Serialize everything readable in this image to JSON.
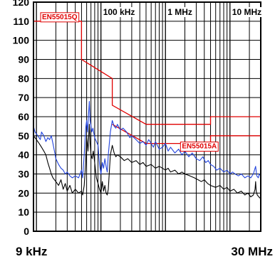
{
  "chart_data": {
    "type": "line",
    "x_scale": "log",
    "x_range_hz": [
      9000,
      30000000
    ],
    "x_label_start": "9 kHz",
    "x_label_end": "30 MHz",
    "decade_labels": [
      {
        "freq_hz": 100000,
        "label": "100 kHz"
      },
      {
        "freq_hz": 1000000,
        "label": "1 MHz"
      },
      {
        "freq_hz": 10000000,
        "label": "10 MHz"
      }
    ],
    "ylim": [
      0,
      120
    ],
    "y_ticks": [
      0,
      10,
      20,
      30,
      40,
      50,
      60,
      70,
      80,
      90,
      100,
      110,
      120
    ],
    "grid": true,
    "limits": [
      {
        "name": "EN55015Q",
        "color": "#e00000",
        "points": [
          [
            9000,
            110
          ],
          [
            50000,
            110
          ],
          [
            50000,
            90
          ],
          [
            150000,
            80
          ],
          [
            150000,
            66
          ],
          [
            500000,
            56
          ],
          [
            5000000,
            56
          ],
          [
            5000000,
            60
          ],
          [
            30000000,
            60
          ]
        ]
      },
      {
        "name": "EN55015A",
        "color": "#e00000",
        "points": [
          [
            150000,
            56
          ],
          [
            500000,
            46
          ],
          [
            5000000,
            46
          ],
          [
            5000000,
            50
          ],
          [
            30000000,
            50
          ]
        ]
      }
    ],
    "series": [
      {
        "color": "#2244dd",
        "points": [
          [
            9000,
            55
          ],
          [
            9500,
            52
          ],
          [
            10500,
            50
          ],
          [
            11500,
            48
          ],
          [
            12000,
            52
          ],
          [
            13000,
            50
          ],
          [
            14000,
            47
          ],
          [
            15000,
            49
          ],
          [
            16000,
            48
          ],
          [
            17000,
            50
          ],
          [
            18000,
            46
          ],
          [
            19000,
            42
          ],
          [
            20000,
            38
          ],
          [
            22000,
            35
          ],
          [
            24000,
            33
          ],
          [
            26000,
            32
          ],
          [
            28000,
            30
          ],
          [
            30000,
            31
          ],
          [
            33000,
            29
          ],
          [
            36000,
            28
          ],
          [
            40000,
            29
          ],
          [
            45000,
            28
          ],
          [
            50000,
            32
          ],
          [
            52000,
            28
          ],
          [
            55000,
            40
          ],
          [
            58000,
            54
          ],
          [
            60000,
            58
          ],
          [
            62000,
            52
          ],
          [
            64000,
            60
          ],
          [
            66000,
            68
          ],
          [
            68000,
            58
          ],
          [
            70000,
            55
          ],
          [
            72000,
            52
          ],
          [
            75000,
            54
          ],
          [
            78000,
            51
          ],
          [
            80000,
            49
          ],
          [
            85000,
            47
          ],
          [
            90000,
            45
          ],
          [
            95000,
            35
          ],
          [
            100000,
            30
          ],
          [
            105000,
            36
          ],
          [
            110000,
            33
          ],
          [
            115000,
            38
          ],
          [
            120000,
            34
          ],
          [
            125000,
            31
          ],
          [
            130000,
            40
          ],
          [
            140000,
            52
          ],
          [
            150000,
            58
          ],
          [
            160000,
            55
          ],
          [
            170000,
            54
          ],
          [
            180000,
            56
          ],
          [
            200000,
            53
          ],
          [
            220000,
            54
          ],
          [
            250000,
            52
          ],
          [
            280000,
            49
          ],
          [
            300000,
            50
          ],
          [
            350000,
            48
          ],
          [
            400000,
            46
          ],
          [
            450000,
            47
          ],
          [
            500000,
            45
          ],
          [
            550000,
            48
          ],
          [
            600000,
            46
          ],
          [
            650000,
            44
          ],
          [
            700000,
            47
          ],
          [
            800000,
            43
          ],
          [
            900000,
            44
          ],
          [
            1000000,
            46
          ],
          [
            1100000,
            42
          ],
          [
            1200000,
            44
          ],
          [
            1400000,
            41
          ],
          [
            1600000,
            43
          ],
          [
            1800000,
            40
          ],
          [
            2000000,
            42
          ],
          [
            2300000,
            39
          ],
          [
            2600000,
            41
          ],
          [
            3000000,
            38
          ],
          [
            3400000,
            37
          ],
          [
            3800000,
            39
          ],
          [
            4200000,
            36
          ],
          [
            4600000,
            37
          ],
          [
            5000000,
            35
          ],
          [
            5600000,
            34
          ],
          [
            6200000,
            32
          ],
          [
            7000000,
            33
          ],
          [
            8000000,
            31
          ],
          [
            9000000,
            32
          ],
          [
            10000000,
            30
          ],
          [
            11000000,
            31
          ],
          [
            12000000,
            30
          ],
          [
            13500000,
            29
          ],
          [
            15000000,
            30
          ],
          [
            17000000,
            28
          ],
          [
            19000000,
            29
          ],
          [
            21000000,
            28
          ],
          [
            23000000,
            30
          ],
          [
            25000000,
            34
          ],
          [
            26000000,
            29
          ],
          [
            27500000,
            28
          ],
          [
            28500000,
            30
          ],
          [
            30000000,
            29
          ]
        ]
      },
      {
        "color": "#000000",
        "points": [
          [
            9000,
            50
          ],
          [
            10000,
            48
          ],
          [
            11000,
            46
          ],
          [
            12000,
            44
          ],
          [
            13000,
            42
          ],
          [
            14000,
            40
          ],
          [
            15000,
            36
          ],
          [
            16000,
            33
          ],
          [
            17000,
            30
          ],
          [
            18000,
            28
          ],
          [
            20000,
            26
          ],
          [
            22000,
            24
          ],
          [
            24000,
            27
          ],
          [
            26000,
            22
          ],
          [
            28000,
            25
          ],
          [
            30000,
            21
          ],
          [
            33000,
            24
          ],
          [
            36000,
            20
          ],
          [
            40000,
            22
          ],
          [
            45000,
            20
          ],
          [
            50000,
            21
          ],
          [
            52000,
            19
          ],
          [
            55000,
            24
          ],
          [
            58000,
            36
          ],
          [
            60000,
            50
          ],
          [
            63000,
            42
          ],
          [
            66000,
            56
          ],
          [
            68000,
            46
          ],
          [
            70000,
            40
          ],
          [
            73000,
            38
          ],
          [
            76000,
            42
          ],
          [
            80000,
            36
          ],
          [
            85000,
            28
          ],
          [
            90000,
            25
          ],
          [
            95000,
            22
          ],
          [
            100000,
            20
          ],
          [
            105000,
            26
          ],
          [
            110000,
            21
          ],
          [
            115000,
            24
          ],
          [
            120000,
            20
          ],
          [
            125000,
            19
          ],
          [
            130000,
            22
          ],
          [
            140000,
            40
          ],
          [
            150000,
            45
          ],
          [
            160000,
            41
          ],
          [
            170000,
            39
          ],
          [
            180000,
            40
          ],
          [
            200000,
            39
          ],
          [
            230000,
            37
          ],
          [
            260000,
            38
          ],
          [
            300000,
            36
          ],
          [
            350000,
            37
          ],
          [
            400000,
            35
          ],
          [
            450000,
            36
          ],
          [
            500000,
            34
          ],
          [
            600000,
            35
          ],
          [
            700000,
            33
          ],
          [
            800000,
            34
          ],
          [
            900000,
            33
          ],
          [
            1000000,
            32
          ],
          [
            1100000,
            33
          ],
          [
            1200000,
            31
          ],
          [
            1400000,
            32
          ],
          [
            1600000,
            30
          ],
          [
            1800000,
            31
          ],
          [
            2000000,
            30
          ],
          [
            2400000,
            29
          ],
          [
            2800000,
            28
          ],
          [
            3200000,
            27
          ],
          [
            3600000,
            26
          ],
          [
            4000000,
            27
          ],
          [
            4500000,
            25
          ],
          [
            5000000,
            24
          ],
          [
            6000000,
            23
          ],
          [
            7000000,
            24
          ],
          [
            8000000,
            22
          ],
          [
            9000000,
            23
          ],
          [
            10000000,
            21
          ],
          [
            11500000,
            22
          ],
          [
            13000000,
            20
          ],
          [
            15000000,
            21
          ],
          [
            17000000,
            19
          ],
          [
            19000000,
            20
          ],
          [
            21000000,
            18
          ],
          [
            23000000,
            19
          ],
          [
            24500000,
            22
          ],
          [
            25000000,
            26
          ],
          [
            25500000,
            21
          ],
          [
            26500000,
            19
          ],
          [
            28000000,
            18
          ],
          [
            30000000,
            17
          ]
        ]
      }
    ]
  }
}
